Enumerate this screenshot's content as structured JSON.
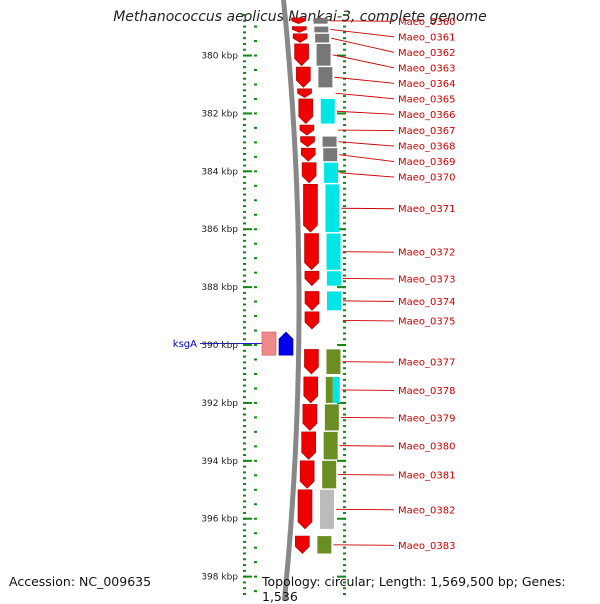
{
  "title": "Methanococcus aeolicus Nankai-3, complete genome",
  "accession_text": "Accession: NC_009635",
  "topology_text": "Topology: circular; Length: 1,569,500 bp; Genes: 1,536",
  "colors": {
    "forward_gene": "#ee0000",
    "rna_gene": "#f08a8a",
    "highlight_gene": "#0000ee",
    "label_red": "#cc0000",
    "label_blue": "#0000cc",
    "tick_green": "#118811",
    "backbone": "#888888",
    "cat_gray": "#777777",
    "cat_cyan": "#00e6e6",
    "cat_olive": "#6b8e23",
    "cat_lightgray": "#bbbbbb"
  },
  "axis": {
    "start_kbp": 378.6,
    "end_kbp": 398.6,
    "ticks": [
      {
        "kbp": 380,
        "label": "380 kbp"
      },
      {
        "kbp": 382,
        "label": "382 kbp"
      },
      {
        "kbp": 384,
        "label": "384 kbp"
      },
      {
        "kbp": 386,
        "label": "386 kbp"
      },
      {
        "kbp": 388,
        "label": "388 kbp"
      },
      {
        "kbp": 390,
        "label": "390 kbp"
      },
      {
        "kbp": 392,
        "label": "392 kbp"
      },
      {
        "kbp": 394,
        "label": "394 kbp"
      },
      {
        "kbp": 396,
        "label": "396 kbp"
      },
      {
        "kbp": 398,
        "label": "398 kbp"
      }
    ]
  },
  "genes": [
    {
      "name": "Maeo_0360",
      "start_kbp": 378.7,
      "end_kbp": 378.9,
      "category": "gray"
    },
    {
      "name": "Maeo_0361",
      "start_kbp": 379.0,
      "end_kbp": 379.2,
      "category": "gray"
    },
    {
      "name": "Maeo_0362",
      "start_kbp": 379.25,
      "end_kbp": 379.55,
      "category": "gray"
    },
    {
      "name": "Maeo_0363",
      "start_kbp": 379.6,
      "end_kbp": 380.35,
      "category": "gray"
    },
    {
      "name": "Maeo_0364",
      "start_kbp": 380.4,
      "end_kbp": 381.1,
      "category": "gray"
    },
    {
      "name": "Maeo_0365",
      "start_kbp": 381.15,
      "end_kbp": 381.45,
      "category": "none"
    },
    {
      "name": "Maeo_0366",
      "start_kbp": 381.5,
      "end_kbp": 382.35,
      "category": "cyan"
    },
    {
      "name": "Maeo_0367",
      "start_kbp": 382.4,
      "end_kbp": 382.75,
      "category": "none"
    },
    {
      "name": "Maeo_0368",
      "start_kbp": 382.8,
      "end_kbp": 383.15,
      "category": "gray"
    },
    {
      "name": "Maeo_0369",
      "start_kbp": 383.2,
      "end_kbp": 383.65,
      "category": "gray"
    },
    {
      "name": "Maeo_0370",
      "start_kbp": 383.7,
      "end_kbp": 384.4,
      "category": "cyan"
    },
    {
      "name": "Maeo_0371",
      "start_kbp": 384.45,
      "end_kbp": 386.1,
      "category": "cyan"
    },
    {
      "name": "Maeo_0372",
      "start_kbp": 386.15,
      "end_kbp": 387.4,
      "category": "cyan"
    },
    {
      "name": "Maeo_0373",
      "start_kbp": 387.45,
      "end_kbp": 387.95,
      "category": "cyan"
    },
    {
      "name": "Maeo_0374",
      "start_kbp": 388.15,
      "end_kbp": 388.8,
      "category": "cyan"
    },
    {
      "name": "Maeo_0375",
      "start_kbp": 388.85,
      "end_kbp": 389.45,
      "category": "none"
    },
    {
      "name": "Maeo_0377",
      "start_kbp": 390.15,
      "end_kbp": 391.0,
      "category": "olive"
    },
    {
      "name": "Maeo_0378",
      "start_kbp": 391.1,
      "end_kbp": 392.0,
      "category": "olive-cyan"
    },
    {
      "name": "Maeo_0379",
      "start_kbp": 392.05,
      "end_kbp": 392.95,
      "category": "olive"
    },
    {
      "name": "Maeo_0380",
      "start_kbp": 393.0,
      "end_kbp": 393.95,
      "category": "olive"
    },
    {
      "name": "Maeo_0381",
      "start_kbp": 394.0,
      "end_kbp": 394.95,
      "category": "olive"
    },
    {
      "name": "Maeo_0382",
      "start_kbp": 395.0,
      "end_kbp": 396.35,
      "category": "lightgray"
    },
    {
      "name": "Maeo_0383",
      "start_kbp": 396.6,
      "end_kbp": 397.2,
      "category": "olive"
    }
  ],
  "reverse_features": [
    {
      "name": "ksgA",
      "start_kbp": 389.55,
      "end_kbp": 390.35,
      "kind": "highlight"
    },
    {
      "name": "",
      "start_kbp": 389.55,
      "end_kbp": 390.35,
      "kind": "rna"
    }
  ]
}
